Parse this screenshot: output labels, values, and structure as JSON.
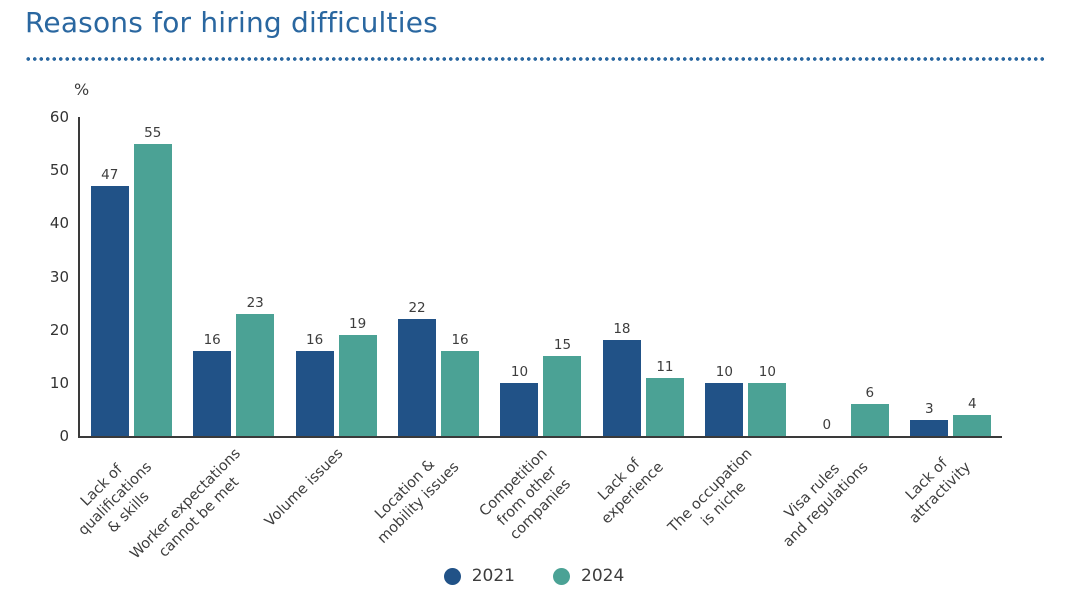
{
  "title": "Reasons for hiring difficulties",
  "colors": {
    "accent_title": "#2a67a0",
    "axis": "#3a3a3a",
    "text": "#3d3d3d",
    "series_2021": "#215287",
    "series_2024": "#4ba295"
  },
  "chart_data": {
    "type": "bar",
    "title": "Reasons for hiring difficulties",
    "xlabel": "",
    "ylabel": "%",
    "ylim": [
      0,
      60
    ],
    "yticks": [
      0,
      10,
      20,
      30,
      40,
      50,
      60
    ],
    "grid": false,
    "legend_position": "bottom-center",
    "categories": [
      "Lack of\nqualifications\n& skills",
      "Worker expectations\ncannot be met",
      "Volume issues",
      "Location &\nmobility issues",
      "Competition\nfrom other\ncompanies",
      "Lack of\nexperience",
      "The occupation\nis niche",
      "Visa rules\nand regulations",
      "Lack of\nattractivity"
    ],
    "series": [
      {
        "name": "2021",
        "color": "#215287",
        "values": [
          47,
          16,
          16,
          22,
          10,
          18,
          10,
          0,
          3
        ]
      },
      {
        "name": "2024",
        "color": "#4ba295",
        "values": [
          55,
          23,
          19,
          16,
          15,
          11,
          10,
          6,
          4
        ]
      }
    ]
  }
}
